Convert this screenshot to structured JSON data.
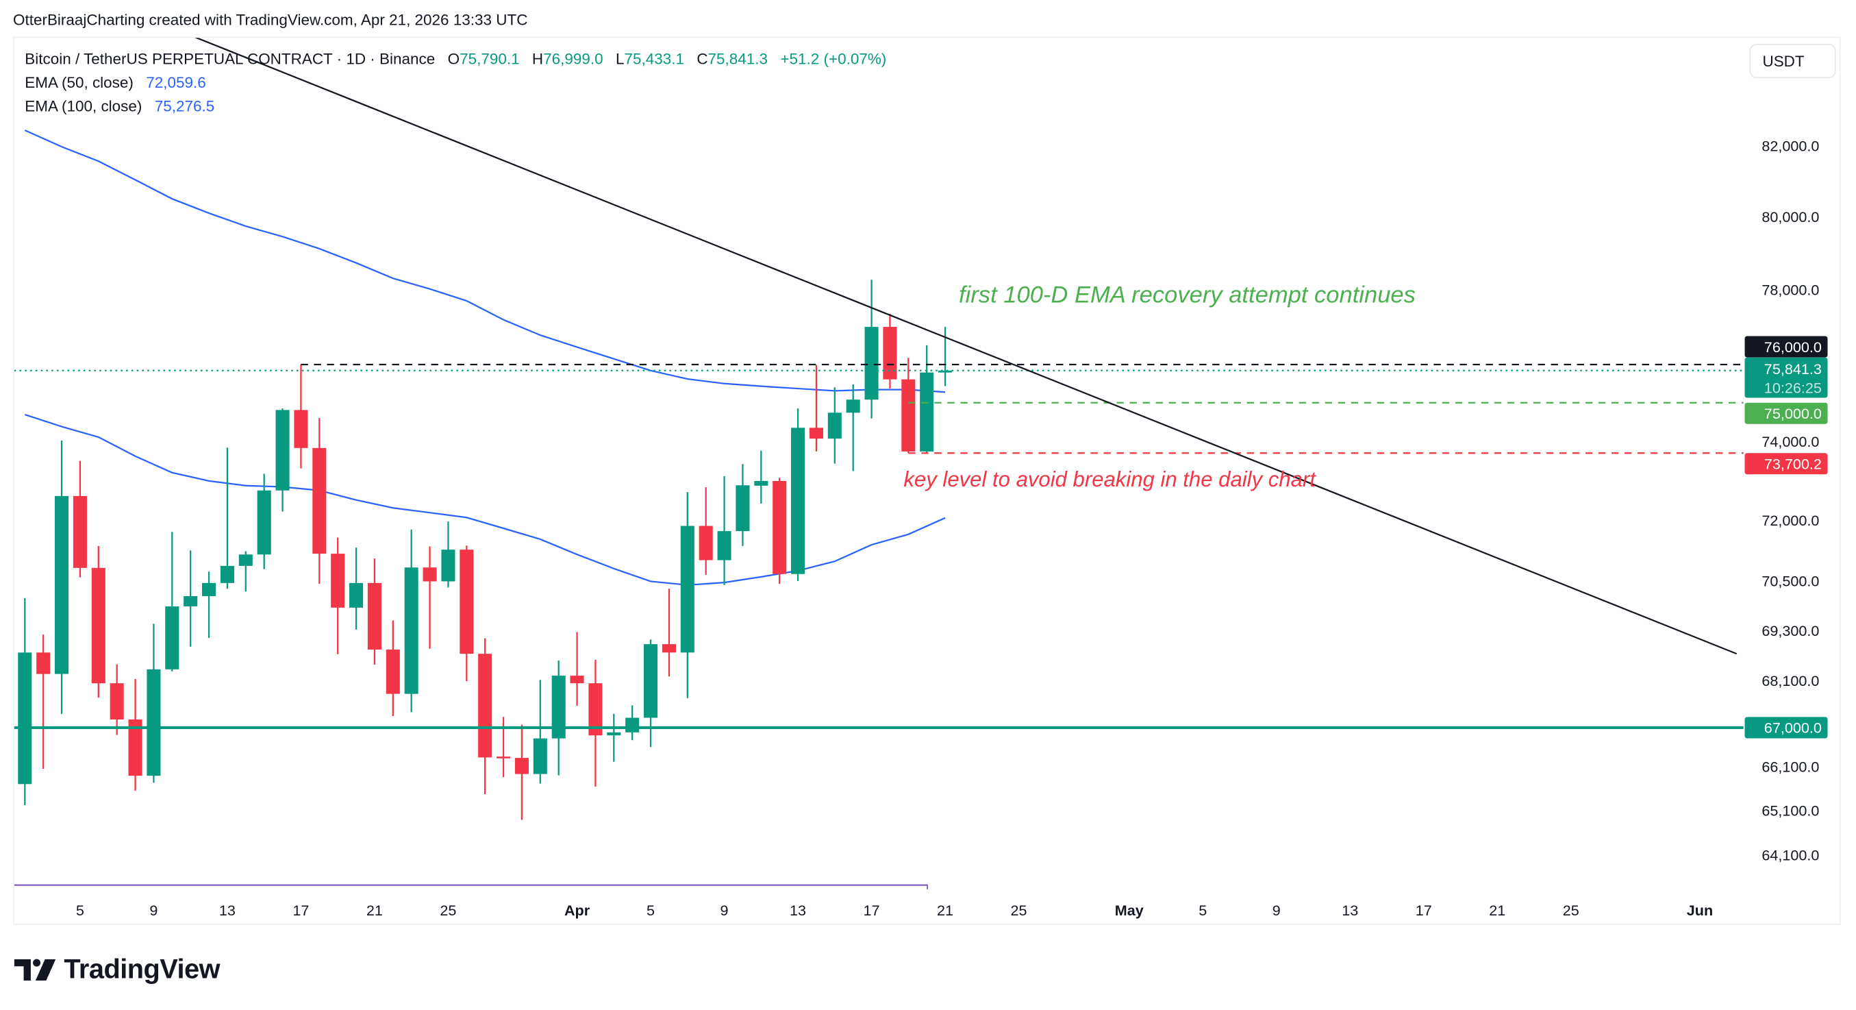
{
  "attribution": "OtterBiraajCharting created with TradingView.com, Apr 21, 2026 13:33 UTC",
  "legend": {
    "symbol": "Bitcoin / TetherUS PERPETUAL CONTRACT · 1D · Binance",
    "o_label": "O",
    "o": "75,790.1",
    "h_label": "H",
    "h": "76,999.0",
    "l_label": "L",
    "l": "75,433.1",
    "c_label": "C",
    "c": "75,841.3",
    "change": "+51.2 (+0.07%)",
    "ema50_label": "EMA (50, close)",
    "ema50_value": "72,059.6",
    "ema100_label": "EMA (100, close)",
    "ema100_value": "75,276.5"
  },
  "currency_button": "USDT",
  "logo_text": "TradingView",
  "colors": {
    "up": "#089981",
    "down": "#F23645",
    "ema": "#2962FF",
    "trendline": "#131722",
    "support_green": "#4CAF50",
    "key_level_red": "#F23645",
    "range_bar": "#7E57C2"
  },
  "chart_data": {
    "type": "candlestick",
    "title": "",
    "scale": "log",
    "grid": false,
    "ylim": [
      63420,
      85160
    ],
    "columns": [
      "date",
      "open",
      "high",
      "low",
      "close"
    ],
    "candles": [
      [
        "2026-03-02",
        65700,
        70080,
        65220,
        68770
      ],
      [
        "2026-03-03",
        68770,
        69200,
        66050,
        68260
      ],
      [
        "2026-03-04",
        68260,
        74020,
        67320,
        72610
      ],
      [
        "2026-03-05",
        72610,
        73500,
        70590,
        70820
      ],
      [
        "2026-03-06",
        70820,
        71360,
        67700,
        68040
      ],
      [
        "2026-03-07",
        68040,
        68490,
        66830,
        67190
      ],
      [
        "2026-03-08",
        67190,
        68140,
        65550,
        65890
      ],
      [
        "2026-03-09",
        65890,
        69460,
        65730,
        68370
      ],
      [
        "2026-03-10",
        68370,
        71710,
        68320,
        69880
      ],
      [
        "2026-03-11",
        69880,
        71250,
        68910,
        70130
      ],
      [
        "2026-03-12",
        70130,
        70730,
        69120,
        70450
      ],
      [
        "2026-03-13",
        70450,
        73840,
        70310,
        70870
      ],
      [
        "2026-03-14",
        70870,
        71230,
        70240,
        71150
      ],
      [
        "2026-03-15",
        71150,
        73170,
        70790,
        72750
      ],
      [
        "2026-03-16",
        72750,
        74850,
        72220,
        74810
      ],
      [
        "2026-03-17",
        74810,
        76000,
        73310,
        73830
      ],
      [
        "2026-03-18",
        73830,
        74600,
        70430,
        71170
      ],
      [
        "2026-03-19",
        71170,
        71570,
        68730,
        69850
      ],
      [
        "2026-03-20",
        69850,
        71320,
        69320,
        70450
      ],
      [
        "2026-03-21",
        70450,
        71050,
        68480,
        68840
      ],
      [
        "2026-03-22",
        68840,
        69540,
        67270,
        67790
      ],
      [
        "2026-03-23",
        67790,
        71770,
        67360,
        70830
      ],
      [
        "2026-03-24",
        70830,
        71350,
        68860,
        70490
      ],
      [
        "2026-03-25",
        70490,
        71970,
        70340,
        71270
      ],
      [
        "2026-03-26",
        71270,
        71370,
        68090,
        68740
      ],
      [
        "2026-03-27",
        68740,
        69110,
        65470,
        66310
      ],
      [
        "2026-03-28",
        66330,
        67250,
        65860,
        66300
      ],
      [
        "2026-03-29",
        66300,
        67070,
        64890,
        65930
      ],
      [
        "2026-03-30",
        65930,
        68120,
        65710,
        66750
      ],
      [
        "2026-03-31",
        66750,
        68580,
        65900,
        68220
      ],
      [
        "2026-04-01",
        68220,
        69260,
        67510,
        68040
      ],
      [
        "2026-04-02",
        68040,
        68600,
        65640,
        66820
      ],
      [
        "2026-04-03",
        66820,
        67320,
        66210,
        66890
      ],
      [
        "2026-04-04",
        66890,
        67520,
        66710,
        67230
      ],
      [
        "2026-04-05",
        67230,
        69080,
        66550,
        68970
      ],
      [
        "2026-04-06",
        68970,
        70310,
        68200,
        68770
      ],
      [
        "2026-04-07",
        68770,
        72710,
        67690,
        71860
      ],
      [
        "2026-04-08",
        71860,
        72830,
        70650,
        71010
      ],
      [
        "2026-04-09",
        71010,
        73110,
        70400,
        71730
      ],
      [
        "2026-04-10",
        71730,
        73420,
        71360,
        72880
      ],
      [
        "2026-04-11",
        72870,
        73760,
        72420,
        72990
      ],
      [
        "2026-04-12",
        72990,
        73070,
        70430,
        70670
      ],
      [
        "2026-04-13",
        70670,
        74850,
        70500,
        74350
      ],
      [
        "2026-04-14",
        74350,
        75990,
        73740,
        74070
      ],
      [
        "2026-04-15",
        74070,
        75400,
        73430,
        74740
      ],
      [
        "2026-04-16",
        74740,
        75480,
        73240,
        75080
      ],
      [
        "2026-04-17",
        75080,
        78270,
        74590,
        77000
      ],
      [
        "2026-04-18",
        77000,
        77350,
        75370,
        75610
      ],
      [
        "2026-04-19",
        75610,
        76180,
        73700.2,
        73740
      ],
      [
        "2026-04-20",
        73740,
        76510,
        73710,
        75790
      ],
      [
        "2026-04-21",
        75790.1,
        76999.0,
        75433.1,
        75841.3
      ]
    ],
    "series": [
      {
        "name": "EMA (100, close)",
        "points": [
          [
            "2026-03-02",
            82440
          ],
          [
            "2026-03-04",
            81970
          ],
          [
            "2026-03-06",
            81560
          ],
          [
            "2026-03-08",
            81030
          ],
          [
            "2026-03-10",
            80500
          ],
          [
            "2026-03-12",
            80100
          ],
          [
            "2026-03-14",
            79740
          ],
          [
            "2026-03-16",
            79450
          ],
          [
            "2026-03-18",
            79120
          ],
          [
            "2026-03-20",
            78730
          ],
          [
            "2026-03-22",
            78310
          ],
          [
            "2026-03-24",
            78020
          ],
          [
            "2026-03-26",
            77700
          ],
          [
            "2026-03-28",
            77190
          ],
          [
            "2026-03-30",
            76780
          ],
          [
            "2026-04-01",
            76460
          ],
          [
            "2026-04-03",
            76150
          ],
          [
            "2026-04-05",
            75840
          ],
          [
            "2026-04-07",
            75620
          ],
          [
            "2026-04-09",
            75500
          ],
          [
            "2026-04-11",
            75430
          ],
          [
            "2026-04-13",
            75370
          ],
          [
            "2026-04-15",
            75310
          ],
          [
            "2026-04-17",
            75340
          ],
          [
            "2026-04-19",
            75340
          ],
          [
            "2026-04-21",
            75276.5
          ]
        ]
      },
      {
        "name": "EMA (50, close)",
        "points": [
          [
            "2026-03-02",
            74690
          ],
          [
            "2026-03-04",
            74380
          ],
          [
            "2026-03-06",
            74110
          ],
          [
            "2026-03-08",
            73620
          ],
          [
            "2026-03-10",
            73200
          ],
          [
            "2026-03-12",
            72990
          ],
          [
            "2026-03-14",
            72870
          ],
          [
            "2026-03-16",
            72840
          ],
          [
            "2026-03-18",
            72750
          ],
          [
            "2026-03-20",
            72510
          ],
          [
            "2026-03-22",
            72310
          ],
          [
            "2026-03-24",
            72190
          ],
          [
            "2026-03-26",
            72070
          ],
          [
            "2026-03-28",
            71800
          ],
          [
            "2026-03-30",
            71530
          ],
          [
            "2026-04-01",
            71150
          ],
          [
            "2026-04-03",
            70805
          ],
          [
            "2026-04-05",
            70490
          ],
          [
            "2026-04-07",
            70400
          ],
          [
            "2026-04-09",
            70460
          ],
          [
            "2026-04-11",
            70600
          ],
          [
            "2026-04-13",
            70750
          ],
          [
            "2026-04-15",
            70980
          ],
          [
            "2026-04-17",
            71390
          ],
          [
            "2026-04-19",
            71650
          ],
          [
            "2026-04-21",
            72059.6
          ]
        ]
      }
    ],
    "trendline": [
      [
        "2026-03-11",
        85200
      ],
      [
        "2026-06-03",
        68740
      ]
    ],
    "horizontal_lines": [
      {
        "price": 76000,
        "from": "2026-03-17",
        "style": "dashed",
        "color": "#131722"
      },
      {
        "price": 75841.3,
        "from": "start",
        "style": "dotted",
        "color": "#089981"
      },
      {
        "price": 75000,
        "from": "2026-04-19",
        "style": "dashed",
        "color": "#4CAF50"
      },
      {
        "price": 73700.2,
        "from": "2026-04-19",
        "style": "dashed",
        "color": "#F23645"
      },
      {
        "price": 67000,
        "from": "start",
        "style": "solid",
        "color": "#089981"
      }
    ],
    "annotations": [
      {
        "text": "first 100-D EMA recovery attempt continues",
        "date": "2026-04-22",
        "price": 77650,
        "color": "#4CAF50"
      },
      {
        "text": "key level to avoid breaking in the daily chart",
        "date": "2026-04-19",
        "price": 72850,
        "color": "#F23645"
      }
    ],
    "y_ticks": [
      {
        "value": 82000,
        "label": "82,000.0"
      },
      {
        "value": 80000,
        "label": "80,000.0"
      },
      {
        "value": 78000,
        "label": "78,000.0"
      },
      {
        "value": 74000,
        "label": "74,000.0"
      },
      {
        "value": 72000,
        "label": "72,000.0"
      },
      {
        "value": 70500,
        "label": "70,500.0"
      },
      {
        "value": 69300,
        "label": "69,300.0"
      },
      {
        "value": 68100,
        "label": "68,100.0"
      },
      {
        "value": 66100,
        "label": "66,100.0"
      },
      {
        "value": 65100,
        "label": "65,100.0"
      },
      {
        "value": 64100,
        "label": "64,100.0"
      }
    ],
    "price_badges": [
      {
        "label": "76,000.0",
        "price": 76000,
        "color": "#131722"
      },
      {
        "label": "75,841.3",
        "sub": "10:26:25",
        "price": 75841.3,
        "color": "#089981"
      },
      {
        "label": "75,000.0",
        "price": 75000,
        "color": "#4CAF50"
      },
      {
        "label": "73,700.2",
        "price": 73700.2,
        "color": "#F23645"
      },
      {
        "label": "67,000.0",
        "price": 67000,
        "color": "#089981"
      }
    ],
    "x_ticks": [
      {
        "date": "2026-03-05",
        "label": "5"
      },
      {
        "date": "2026-03-09",
        "label": "9"
      },
      {
        "date": "2026-03-13",
        "label": "13"
      },
      {
        "date": "2026-03-17",
        "label": "17"
      },
      {
        "date": "2026-03-21",
        "label": "21"
      },
      {
        "date": "2026-03-25",
        "label": "25"
      },
      {
        "date": "2026-04-01",
        "label": "Apr"
      },
      {
        "date": "2026-04-05",
        "label": "5"
      },
      {
        "date": "2026-04-09",
        "label": "9"
      },
      {
        "date": "2026-04-13",
        "label": "13"
      },
      {
        "date": "2026-04-17",
        "label": "17"
      },
      {
        "date": "2026-04-21",
        "label": "21"
      },
      {
        "date": "2026-04-25",
        "label": "25"
      },
      {
        "date": "2026-05-01",
        "label": "May"
      },
      {
        "date": "2026-05-05",
        "label": "5"
      },
      {
        "date": "2026-05-09",
        "label": "9"
      },
      {
        "date": "2026-05-13",
        "label": "13"
      },
      {
        "date": "2026-05-17",
        "label": "17"
      },
      {
        "date": "2026-05-21",
        "label": "21"
      },
      {
        "date": "2026-05-25",
        "label": "25"
      },
      {
        "date": "2026-06-01",
        "label": "Jun"
      }
    ]
  }
}
